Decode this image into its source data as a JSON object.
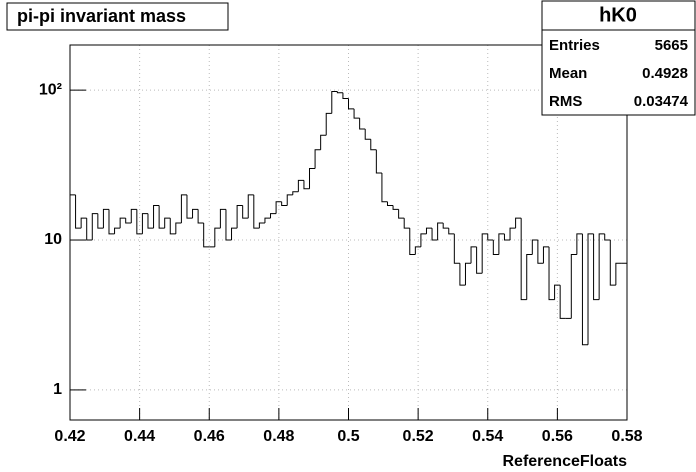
{
  "chart_data": {
    "type": "histogram",
    "title": "pi-pi invariant mass",
    "xlabel": "ReferenceFloats",
    "stats": {
      "name": "hK0",
      "rows": [
        [
          "Entries",
          "5665"
        ],
        [
          "Mean",
          "0.4928"
        ],
        [
          "RMS",
          "0.03474"
        ]
      ]
    },
    "bins": [
      0.42,
      0.4216,
      0.4232,
      0.4248,
      0.4264,
      0.428,
      0.4296,
      0.4312,
      0.4328,
      0.4344,
      0.436,
      0.4376,
      0.4392,
      0.4408,
      0.4424,
      0.444,
      0.4456,
      0.4472,
      0.4488,
      0.4504,
      0.452,
      0.4536,
      0.4552,
      0.4568,
      0.4584,
      0.46,
      0.4616,
      0.4632,
      0.4648,
      0.4664,
      0.468,
      0.4696,
      0.4712,
      0.4728,
      0.4744,
      0.476,
      0.4776,
      0.4792,
      0.4808,
      0.4824,
      0.484,
      0.4856,
      0.4872,
      0.4888,
      0.4904,
      0.492,
      0.4936,
      0.4952,
      0.4968,
      0.4984,
      0.5,
      0.5016,
      0.5032,
      0.5048,
      0.5064,
      0.508,
      0.5096,
      0.5112,
      0.5128,
      0.5144,
      0.516,
      0.5176,
      0.5192,
      0.5208,
      0.5224,
      0.524,
      0.5256,
      0.5272,
      0.5288,
      0.5304,
      0.532,
      0.5336,
      0.5352,
      0.5368,
      0.5384,
      0.54,
      0.5416,
      0.5432,
      0.5448,
      0.5464,
      0.548,
      0.5496,
      0.5512,
      0.5528,
      0.5544,
      0.556,
      0.5576,
      0.5592,
      0.5608,
      0.5624,
      0.564,
      0.5656,
      0.5672,
      0.5688,
      0.5704,
      0.572,
      0.5736,
      0.5752,
      0.5768,
      0.5784,
      0.58
    ],
    "values": [
      20,
      12,
      14,
      10,
      15,
      12,
      16,
      11,
      12,
      14,
      13,
      16,
      11,
      15,
      12,
      17,
      12,
      14,
      11,
      13,
      20,
      14,
      16,
      13,
      9,
      9,
      12,
      16,
      10,
      12,
      17,
      14,
      20,
      12,
      13,
      14,
      15,
      18,
      17,
      20,
      21,
      25,
      22,
      30,
      40,
      50,
      70,
      98,
      96,
      88,
      75,
      65,
      55,
      47,
      40,
      28,
      18,
      17,
      16,
      14,
      12,
      8,
      9,
      11,
      12,
      10,
      13,
      12,
      11,
      7,
      5,
      7,
      9,
      6,
      11,
      10,
      8,
      11,
      10,
      12,
      14,
      4,
      8,
      10,
      7,
      9,
      4,
      5,
      3,
      3,
      8,
      11,
      2,
      11,
      4,
      11,
      10,
      5,
      7,
      7
    ],
    "color": "#000000",
    "xlim": [
      0.42,
      0.58
    ],
    "xticks": [
      0.42,
      0.44,
      0.46,
      0.48,
      0.5,
      0.52,
      0.54,
      0.56,
      0.58
    ],
    "ylim": [
      0.63,
      200
    ],
    "yticks": [
      1,
      10,
      {
        "value": 100,
        "label": "10²"
      }
    ],
    "log_y": true,
    "grid": true
  }
}
